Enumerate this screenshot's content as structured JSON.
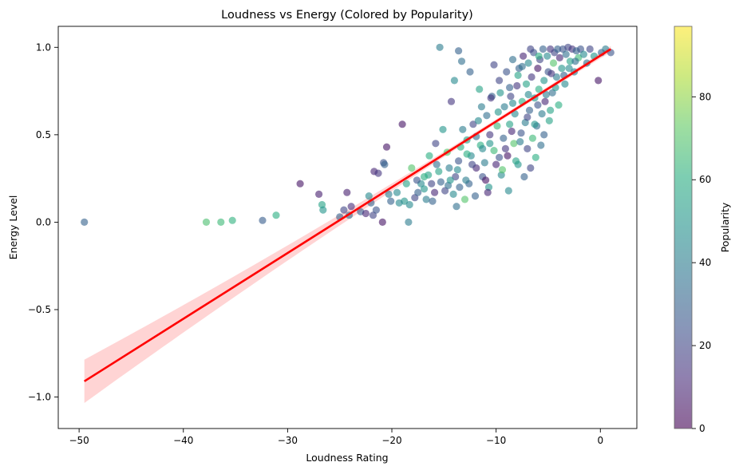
{
  "chart_data": {
    "type": "scatter",
    "title": "Loudness vs Energy (Colored by Popularity)",
    "xlabel": "Loudness Rating",
    "ylabel": "Energy Level",
    "xlim": [
      -52,
      3.5
    ],
    "ylim": [
      -1.18,
      1.12
    ],
    "xticks": [
      -50,
      -40,
      -30,
      -20,
      -10,
      0
    ],
    "yticks": [
      -1.0,
      -0.5,
      0.0,
      0.5,
      1.0
    ],
    "colorbar": {
      "label": "Popularity",
      "range": [
        0,
        97
      ],
      "ticks": [
        0,
        20,
        40,
        60,
        80
      ],
      "colormap": "viridis"
    },
    "regression": {
      "x": [
        -49.5,
        1.0
      ],
      "y": [
        -0.91,
        0.99
      ],
      "color": "#ff0000",
      "band": "#ffcccc"
    },
    "points": [
      [
        -49.5,
        0.0,
        30
      ],
      [
        -37.8,
        0.0,
        68
      ],
      [
        -36.4,
        0.0,
        65
      ],
      [
        -35.3,
        0.01,
        62
      ],
      [
        -32.4,
        0.01,
        28
      ],
      [
        -31.1,
        0.04,
        60
      ],
      [
        -28.8,
        0.22,
        5
      ],
      [
        -27.0,
        0.16,
        8
      ],
      [
        -26.7,
        0.1,
        55
      ],
      [
        -26.6,
        0.07,
        50
      ],
      [
        -25.0,
        0.03,
        30
      ],
      [
        -24.6,
        0.07,
        20
      ],
      [
        -24.3,
        0.17,
        8
      ],
      [
        -24.1,
        0.04,
        35
      ],
      [
        -23.9,
        0.09,
        12
      ],
      [
        -23.0,
        0.06,
        28
      ],
      [
        -22.5,
        0.05,
        10
      ],
      [
        -22.2,
        0.15,
        45
      ],
      [
        -22.0,
        0.11,
        30
      ],
      [
        -21.8,
        0.04,
        20
      ],
      [
        -21.5,
        0.07,
        25
      ],
      [
        -21.7,
        0.29,
        10
      ],
      [
        -21.3,
        0.28,
        15
      ],
      [
        -20.9,
        0.0,
        5
      ],
      [
        -20.8,
        0.34,
        25
      ],
      [
        -20.7,
        0.33,
        30
      ],
      [
        -20.5,
        0.43,
        5
      ],
      [
        -20.3,
        0.16,
        40
      ],
      [
        -20.1,
        0.12,
        30
      ],
      [
        -19.5,
        0.17,
        45
      ],
      [
        -19.0,
        0.56,
        5
      ],
      [
        -18.8,
        0.12,
        50
      ],
      [
        -18.4,
        0.0,
        40
      ],
      [
        -18.3,
        0.1,
        45
      ],
      [
        -18.1,
        0.31,
        70
      ],
      [
        -17.8,
        0.14,
        20
      ],
      [
        -17.5,
        0.17,
        30
      ],
      [
        -17.2,
        0.22,
        45
      ],
      [
        -16.9,
        0.19,
        50
      ],
      [
        -16.7,
        0.13,
        40
      ],
      [
        -16.5,
        0.27,
        55
      ],
      [
        -16.4,
        0.38,
        60
      ],
      [
        -16.2,
        0.22,
        20
      ],
      [
        -15.9,
        0.17,
        10
      ],
      [
        -15.7,
        0.33,
        35
      ],
      [
        -15.5,
        0.29,
        55
      ],
      [
        -15.3,
        0.23,
        30
      ],
      [
        -15.1,
        0.53,
        50
      ],
      [
        -14.9,
        0.18,
        20
      ],
      [
        -14.7,
        0.4,
        70
      ],
      [
        -14.5,
        0.31,
        40
      ],
      [
        -14.3,
        0.69,
        15
      ],
      [
        -14.1,
        0.16,
        45
      ],
      [
        -13.9,
        0.26,
        20
      ],
      [
        -13.8,
        0.09,
        35
      ],
      [
        -13.6,
        0.35,
        25
      ],
      [
        -13.4,
        0.43,
        60
      ],
      [
        -13.2,
        0.53,
        40
      ],
      [
        -13.0,
        0.13,
        70
      ],
      [
        -12.8,
        0.47,
        55
      ],
      [
        -12.6,
        0.22,
        30
      ],
      [
        -12.4,
        0.38,
        45
      ],
      [
        -12.2,
        0.56,
        20
      ],
      [
        -12.0,
        0.15,
        30
      ],
      [
        -11.9,
        0.31,
        10
      ],
      [
        -11.7,
        0.58,
        45
      ],
      [
        -11.5,
        0.44,
        60
      ],
      [
        -11.3,
        0.26,
        25
      ],
      [
        -11.1,
        0.34,
        40
      ],
      [
        -10.9,
        0.61,
        35
      ],
      [
        -10.7,
        0.2,
        50
      ],
      [
        -10.6,
        0.5,
        15
      ],
      [
        -10.4,
        0.72,
        30
      ],
      [
        -10.2,
        0.41,
        65
      ],
      [
        -10.0,
        0.33,
        10
      ],
      [
        -9.8,
        0.63,
        50
      ],
      [
        -9.7,
        0.81,
        20
      ],
      [
        -9.5,
        0.27,
        45
      ],
      [
        -9.3,
        0.48,
        30
      ],
      [
        -9.2,
        0.66,
        40
      ],
      [
        -9.0,
        0.86,
        25
      ],
      [
        -8.9,
        0.38,
        5
      ],
      [
        -8.7,
        0.56,
        55
      ],
      [
        -8.6,
        0.72,
        20
      ],
      [
        -8.4,
        0.93,
        35
      ],
      [
        -8.3,
        0.45,
        70
      ],
      [
        -8.2,
        0.62,
        45
      ],
      [
        -8.0,
        0.78,
        15
      ],
      [
        -7.9,
        0.33,
        50
      ],
      [
        -7.8,
        0.88,
        30
      ],
      [
        -7.6,
        0.51,
        25
      ],
      [
        -7.5,
        0.69,
        60
      ],
      [
        -7.4,
        0.95,
        10
      ],
      [
        -7.2,
        0.57,
        40
      ],
      [
        -7.1,
        0.79,
        55
      ],
      [
        -7.0,
        0.42,
        20
      ],
      [
        -6.9,
        0.91,
        45
      ],
      [
        -6.8,
        0.64,
        30
      ],
      [
        -6.6,
        0.83,
        15
      ],
      [
        -6.5,
        0.48,
        65
      ],
      [
        -6.4,
        0.97,
        25
      ],
      [
        -6.3,
        0.71,
        50
      ],
      [
        -6.1,
        0.55,
        35
      ],
      [
        -6.0,
        0.88,
        5
      ],
      [
        -5.9,
        0.76,
        60
      ],
      [
        -5.8,
        0.93,
        20
      ],
      [
        -5.6,
        0.62,
        40
      ],
      [
        -5.5,
        0.99,
        30
      ],
      [
        -5.4,
        0.81,
        50
      ],
      [
        -5.3,
        0.69,
        10
      ],
      [
        -5.1,
        0.95,
        45
      ],
      [
        -5.0,
        0.86,
        25
      ],
      [
        -4.9,
        0.58,
        55
      ],
      [
        -4.8,
        0.99,
        15
      ],
      [
        -4.6,
        0.74,
        35
      ],
      [
        -4.5,
        0.91,
        70
      ],
      [
        -4.4,
        0.97,
        20
      ],
      [
        -4.2,
        0.83,
        40
      ],
      [
        -4.1,
        0.99,
        30
      ],
      [
        -4.0,
        0.67,
        60
      ],
      [
        -3.9,
        0.94,
        10
      ],
      [
        -3.7,
        0.88,
        50
      ],
      [
        -3.6,
        0.99,
        25
      ],
      [
        -3.4,
        0.79,
        45
      ],
      [
        -3.3,
        0.96,
        35
      ],
      [
        -3.1,
        1.0,
        20
      ],
      [
        -2.9,
        0.92,
        55
      ],
      [
        -2.7,
        0.99,
        15
      ],
      [
        -2.5,
        0.86,
        40
      ],
      [
        -2.3,
        0.98,
        30
      ],
      [
        -2.1,
        0.94,
        65
      ],
      [
        -1.9,
        0.99,
        25
      ],
      [
        -1.6,
        0.96,
        45
      ],
      [
        -1.3,
        0.91,
        35
      ],
      [
        -1.0,
        0.99,
        20
      ],
      [
        -0.6,
        0.95,
        50
      ],
      [
        -0.2,
        0.81,
        5
      ],
      [
        0.1,
        0.97,
        30
      ],
      [
        0.5,
        0.99,
        40
      ],
      [
        1.0,
        0.97,
        25
      ],
      [
        -12.5,
        0.86,
        30
      ],
      [
        -13.3,
        0.92,
        35
      ],
      [
        -15.4,
        1.0,
        40
      ],
      [
        -13.6,
        0.98,
        30
      ],
      [
        -14.0,
        0.81,
        45
      ],
      [
        -10.2,
        0.9,
        20
      ],
      [
        -11.6,
        0.76,
        55
      ],
      [
        -9.4,
        0.3,
        70
      ],
      [
        -8.8,
        0.18,
        45
      ],
      [
        -10.8,
        0.17,
        10
      ],
      [
        -12.9,
        0.24,
        40
      ],
      [
        -11.0,
        0.24,
        5
      ],
      [
        -7.3,
        0.26,
        30
      ],
      [
        -6.7,
        0.31,
        20
      ],
      [
        -8.1,
        0.35,
        55
      ],
      [
        -9.1,
        0.42,
        15
      ],
      [
        -7.7,
        0.46,
        40
      ],
      [
        -6.2,
        0.37,
        60
      ],
      [
        -5.7,
        0.44,
        35
      ],
      [
        -8.5,
        0.52,
        10
      ],
      [
        -9.9,
        0.55,
        65
      ],
      [
        -11.4,
        0.66,
        40
      ],
      [
        -10.5,
        0.71,
        15
      ],
      [
        -9.6,
        0.74,
        50
      ],
      [
        -8.7,
        0.77,
        30
      ],
      [
        -7.9,
        0.84,
        55
      ],
      [
        -6.9,
        0.73,
        45
      ],
      [
        -6.0,
        0.67,
        25
      ],
      [
        -5.2,
        0.73,
        40
      ],
      [
        -4.3,
        0.77,
        50
      ],
      [
        -3.5,
        0.84,
        30
      ],
      [
        -3.0,
        0.88,
        45
      ],
      [
        -2.4,
        0.92,
        35
      ],
      [
        -4.7,
        0.85,
        15
      ],
      [
        -5.9,
        0.95,
        60
      ],
      [
        -6.7,
        0.99,
        20
      ],
      [
        -7.5,
        0.89,
        35
      ],
      [
        -8.4,
        0.68,
        45
      ],
      [
        -7.0,
        0.6,
        20
      ],
      [
        -6.3,
        0.56,
        50
      ],
      [
        -5.4,
        0.5,
        30
      ],
      [
        -4.8,
        0.64,
        55
      ],
      [
        -9.7,
        0.37,
        25
      ],
      [
        -10.6,
        0.45,
        50
      ],
      [
        -11.9,
        0.49,
        35
      ],
      [
        -12.8,
        0.39,
        60
      ],
      [
        -13.7,
        0.3,
        45
      ],
      [
        -14.6,
        0.21,
        35
      ],
      [
        -15.8,
        0.45,
        20
      ],
      [
        -16.9,
        0.26,
        60
      ],
      [
        -17.6,
        0.24,
        25
      ],
      [
        -18.6,
        0.22,
        55
      ],
      [
        -19.3,
        0.11,
        45
      ],
      [
        -16.1,
        0.12,
        30
      ],
      [
        -14.4,
        0.24,
        50
      ],
      [
        -13.5,
        0.2,
        30
      ],
      [
        -12.3,
        0.33,
        20
      ],
      [
        -11.3,
        0.42,
        45
      ]
    ]
  }
}
